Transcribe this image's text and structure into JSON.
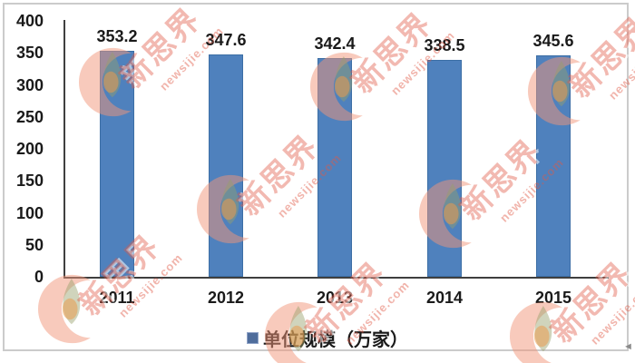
{
  "chart_data": {
    "type": "bar",
    "categories": [
      "2011",
      "2012",
      "2013",
      "2014",
      "2015"
    ],
    "series": [
      {
        "name": "单位规模（万家）",
        "values": [
          353.2,
          347.6,
          342.4,
          338.5,
          345.6
        ]
      }
    ],
    "value_labels": [
      "353.2",
      "347.6",
      "342.4",
      "338.5",
      "345.6"
    ],
    "ylim": [
      0,
      400
    ],
    "yticks": [
      400,
      350,
      300,
      250,
      200,
      150,
      100,
      50,
      0
    ],
    "grid": false,
    "legend": {
      "label": "单位规模（万家）",
      "position": "bottom"
    },
    "colors": {
      "bar_fill": "#4f81bd",
      "bar_border": "#3c6ea5",
      "legend_marker": "#4f6d9c",
      "axis": "#3f3f3f",
      "label_text": "#1a1a1a"
    }
  },
  "watermark": {
    "brand_text": "新思界",
    "site_text": "newsijie.com",
    "text_color": "rgba(224,88,68,0.42)",
    "site_color": "rgba(224,88,68,0.45)",
    "positions": [
      [
        71,
        -36
      ],
      [
        326,
        -31
      ],
      [
        566,
        -26
      ],
      [
        201,
        104
      ],
      [
        446,
        109
      ],
      [
        26,
        214
      ],
      [
        276,
        244
      ],
      [
        546,
        244
      ]
    ]
  },
  "cursor": {
    "glyph": "◄"
  }
}
